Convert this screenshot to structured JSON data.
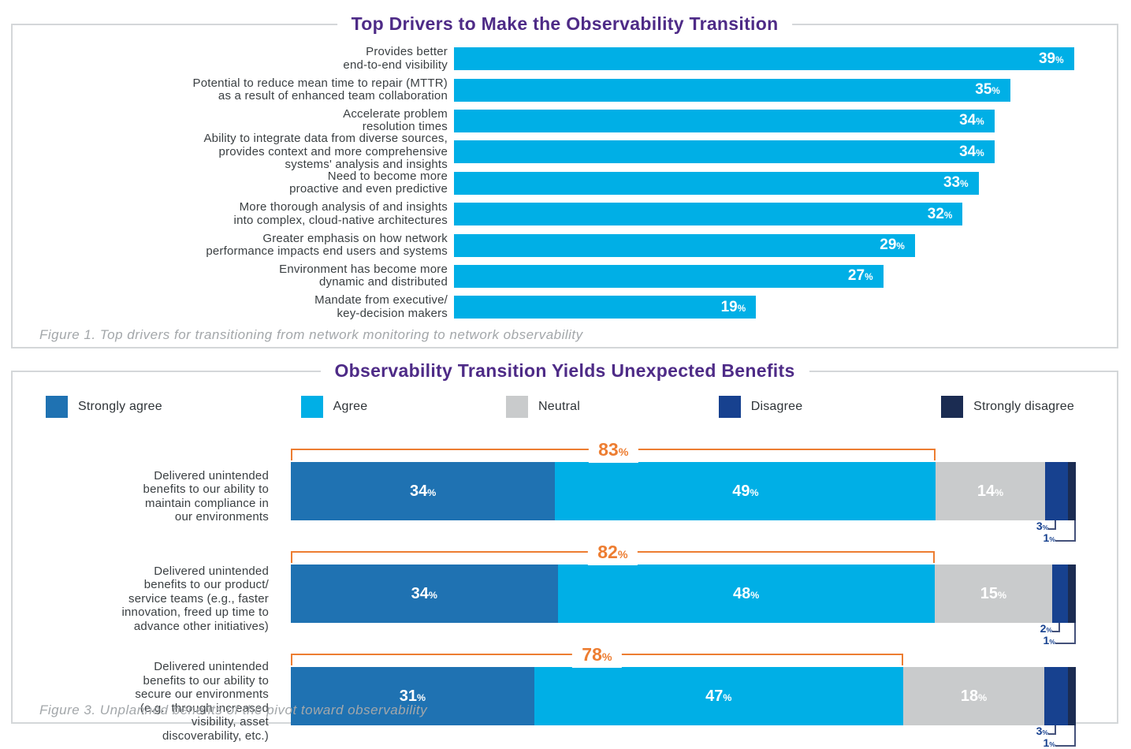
{
  "colors": {
    "title_purple": "#4E2B87",
    "bar_cyan": "#00AFE6",
    "strongly_agree_blue": "#1F72B2",
    "agree_cyan": "#00AFE6",
    "neutral_gray": "#C9CBCC",
    "disagree_blue": "#17418F",
    "strongly_disagree_navy": "#1B2C52",
    "bracket_orange": "#ED7D31",
    "caption_gray": "#A3A7AA",
    "panel_border": "#D4D7D9"
  },
  "chart_data": [
    {
      "type": "bar",
      "title": "Top Drivers to Make the Observability Transition",
      "caption": "Figure 1. Top drivers for transitioning from network monitoring to network observability",
      "unit": "%",
      "bar_color": "#00AFE6",
      "orientation": "horizontal",
      "xlim": [
        0,
        41.6
      ],
      "grid": false,
      "categories": [
        "Provides better\nend-to-end visibility",
        "Potential to reduce mean time to repair (MTTR)\nas a result of enhanced team collaboration",
        "Accelerate problem\nresolution times",
        "Ability to integrate data from diverse sources,\nprovides context and more comprehensive\nsystems' analysis and insights",
        "Need to become more\nproactive and even predictive",
        "More thorough analysis of and insights\ninto complex, cloud-native architectures",
        "Greater emphasis on how network\nperformance impacts end users and systems",
        "Environment has become more\ndynamic and distributed",
        "Mandate from executive/\nkey-decision makers"
      ],
      "values": [
        39,
        35,
        34,
        34,
        33,
        32,
        29,
        27,
        19
      ]
    },
    {
      "type": "stacked-bar",
      "title": "Observability Transition Yields Unexpected Benefits",
      "caption": "Figure 3. Unplanned benefits of the pivot toward observability",
      "unit": "%",
      "orientation": "horizontal",
      "legend_position": "top",
      "legend": [
        {
          "label": "Strongly agree",
          "color": "#1F72B2"
        },
        {
          "label": "Agree",
          "color": "#00AFE6"
        },
        {
          "label": "Neutral",
          "color": "#C9CBCC"
        },
        {
          "label": "Disagree",
          "color": "#17418F"
        },
        {
          "label": "Strongly disagree",
          "color": "#1B2C52"
        }
      ],
      "rows": [
        {
          "label": "Delivered unintended\nbenefits to our ability to\nmaintain compliance in\nour environments",
          "values": [
            34,
            49,
            14,
            3,
            1
          ],
          "agree_total": 83
        },
        {
          "label": "Delivered unintended\nbenefits to our product/\nservice teams (e.g., faster\ninnovation, freed up time to\nadvance other initiatives)",
          "values": [
            34,
            48,
            15,
            2,
            1
          ],
          "agree_total": 82
        },
        {
          "label": "Delivered unintended\nbenefits to our ability to\nsecure our environments\n(e.g., through increased\nvisibility, asset\ndiscoverability, etc.)",
          "values": [
            31,
            47,
            18,
            3,
            1
          ],
          "agree_total": 78
        }
      ]
    }
  ]
}
